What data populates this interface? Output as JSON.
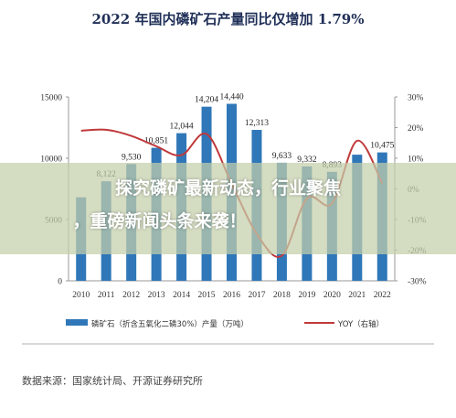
{
  "chart_data": {
    "type": "bar",
    "title": "2022 年国内磷矿石产量同比仅增加 1.79%",
    "categories": [
      "2010",
      "2011",
      "2012",
      "2013",
      "2014",
      "2015",
      "2016",
      "2017",
      "2018",
      "2019",
      "2020",
      "2021",
      "2022"
    ],
    "series": [
      {
        "name": "磷矿石（折含五氧化二磷30%）产量（万吨）",
        "type": "bar",
        "axis": "left",
        "values": [
          6807,
          8122,
          9530,
          10851,
          12044,
          14204,
          14440,
          12313,
          9633,
          9332,
          8893,
          10290,
          10475
        ],
        "labels": [
          "",
          "8,122",
          "9,530",
          "10,851",
          "12,044",
          "14,204",
          "14,440",
          "12,313",
          "9,633",
          "9,332",
          "8,893",
          "",
          "10,475"
        ],
        "color": "#2f77b8"
      },
      {
        "name": "YOY（右轴）",
        "type": "line",
        "axis": "right",
        "values": [
          19,
          19.3,
          17.3,
          13.9,
          11,
          17.9,
          1.7,
          -14.7,
          -21.8,
          -3.1,
          -4.7,
          15.7,
          1.79
        ],
        "color": "#c0393b"
      }
    ],
    "yticks_left": [
      "0",
      "5000",
      "10000",
      "15000"
    ],
    "ylim_left": [
      0,
      15000
    ],
    "yticks_right": [
      "-30%",
      "-20%",
      "-10%",
      "0%",
      "10%",
      "20%",
      "30%"
    ],
    "ylim_right": [
      -30,
      30
    ],
    "legend_position": "bottom",
    "grid": false
  },
  "source": "数据来源：国家统计局、开源证券研究所",
  "banner": {
    "line1": "探究磷矿最新动态，行业聚焦",
    "line2": "，重磅新闻头条来袭！"
  }
}
